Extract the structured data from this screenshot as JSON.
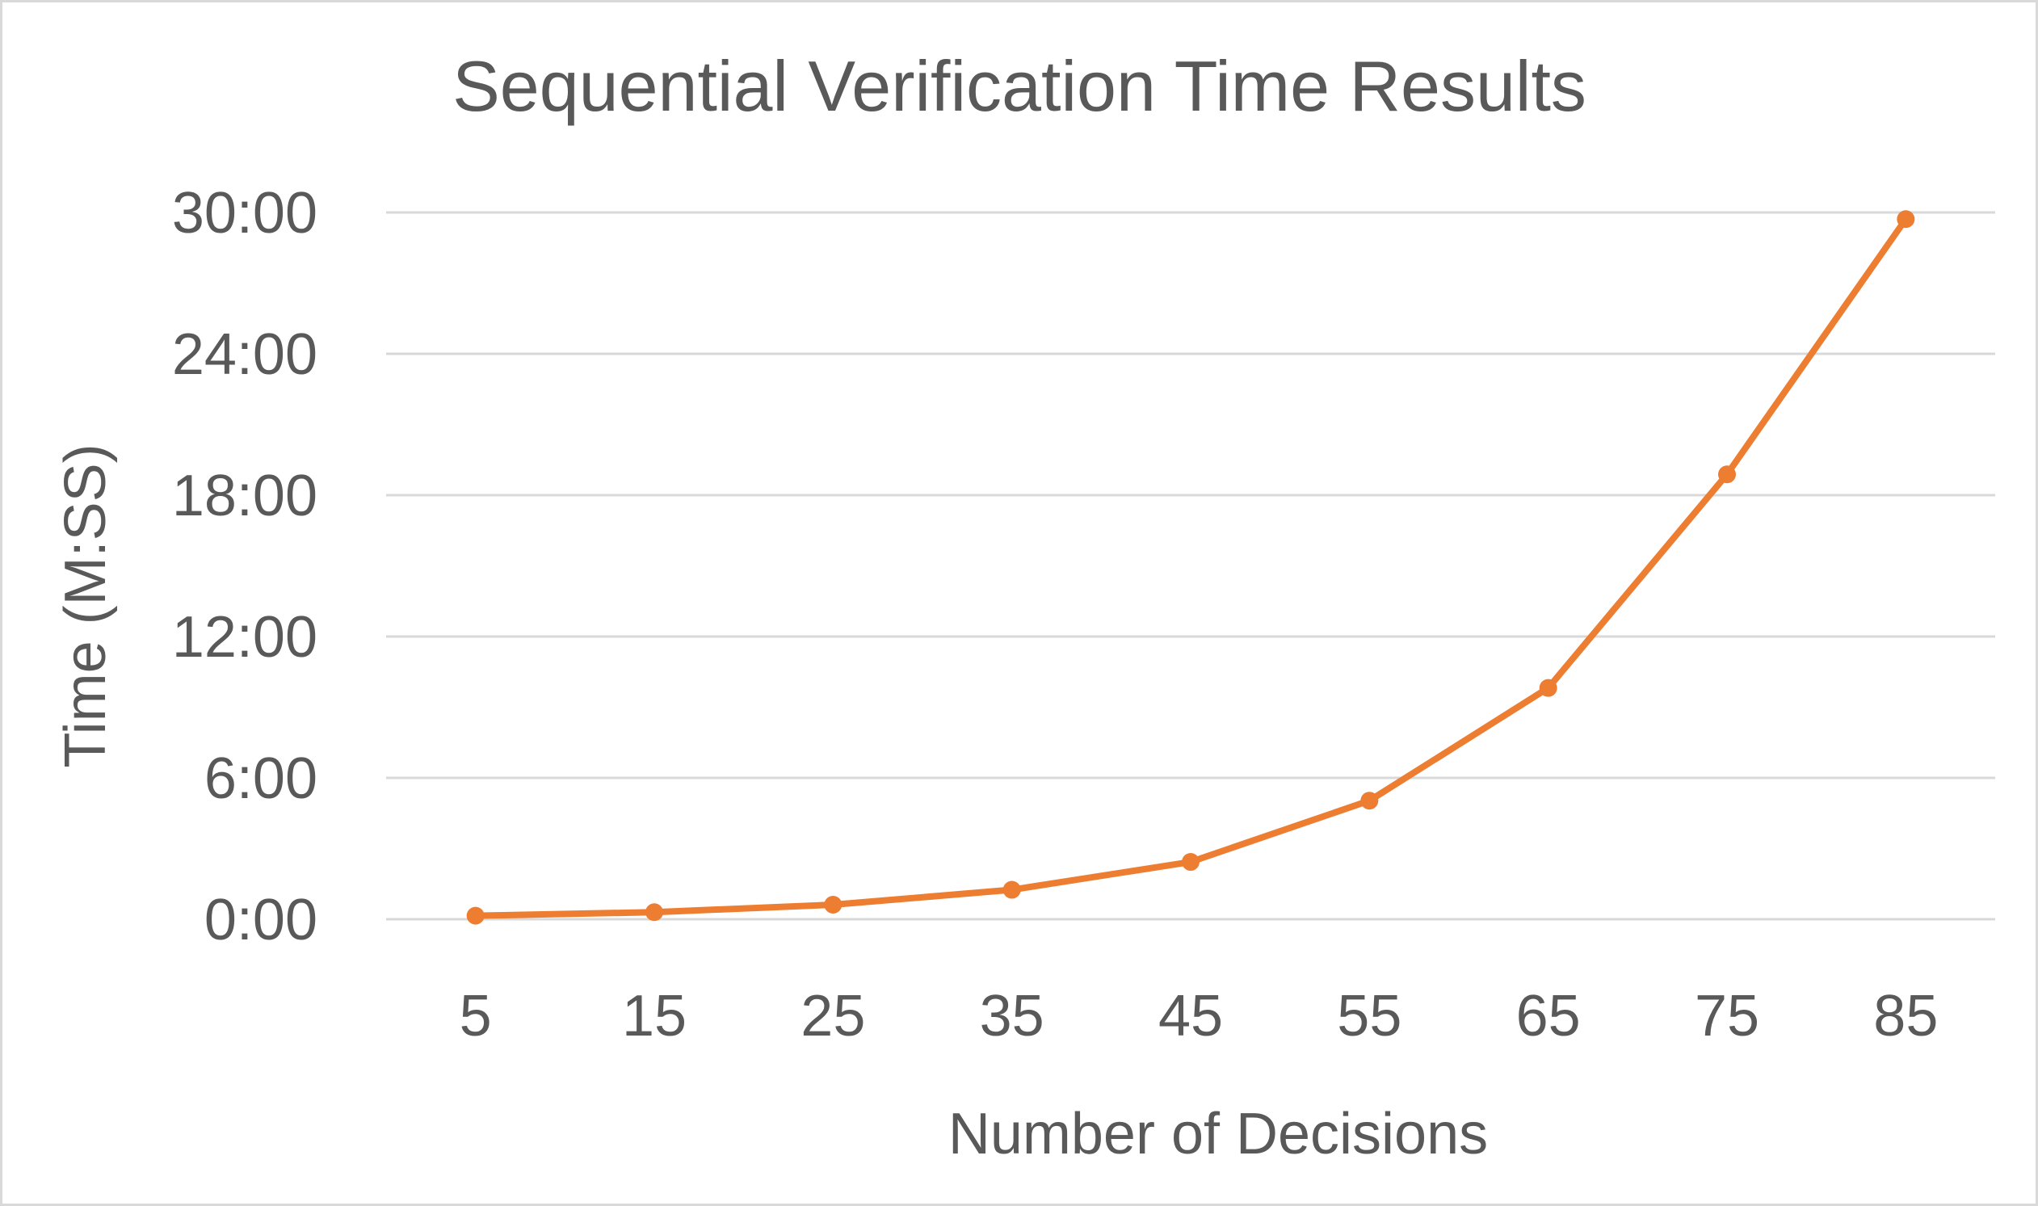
{
  "chart_data": {
    "type": "line",
    "title": "Sequential Verification Time Results",
    "xlabel": "Number of Decisions",
    "ylabel": "Time (M:SS)",
    "categories": [
      "5",
      "15",
      "25",
      "35",
      "45",
      "55",
      "65",
      "75",
      "85"
    ],
    "series": [
      {
        "values_seconds": [
          9,
          18,
          37,
          75,
          146,
          302,
          589,
          1133,
          1783
        ],
        "values_display": [
          "0:09",
          "0:18",
          "0:37",
          "1:15",
          "2:26",
          "5:02",
          "9:49",
          "18:53",
          "29:43"
        ]
      }
    ],
    "ylim_seconds": [
      0,
      1800
    ],
    "yticks": [
      {
        "seconds": 0,
        "label": "0:00"
      },
      {
        "seconds": 360,
        "label": "6:00"
      },
      {
        "seconds": 720,
        "label": "12:00"
      },
      {
        "seconds": 1080,
        "label": "18:00"
      },
      {
        "seconds": 1440,
        "label": "24:00"
      },
      {
        "seconds": 1800,
        "label": "30:00"
      }
    ],
    "grid": true,
    "legend": "none",
    "series_color": "#ed7d31"
  }
}
